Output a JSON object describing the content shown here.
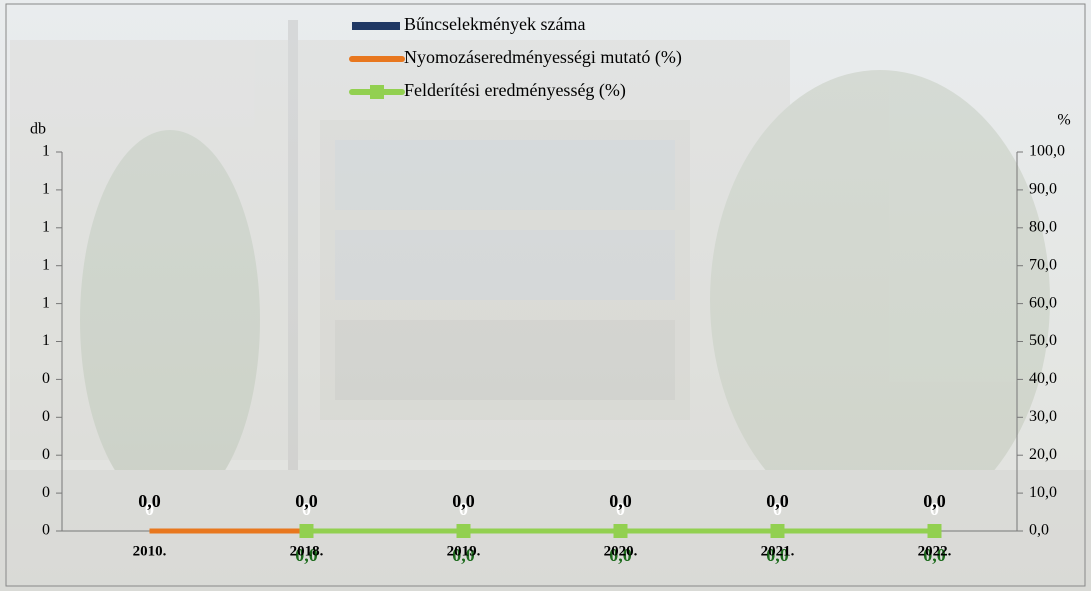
{
  "chart_data": {
    "type": "combo",
    "categories": [
      "2010.",
      "2018.",
      "2019.",
      "2020.",
      "2021.",
      "2022."
    ],
    "y_axis_label": "db",
    "y2_axis_label": "%",
    "ylim": [
      0,
      1
    ],
    "yticks": [
      {
        "value": 0,
        "label": "0"
      },
      {
        "value": 0.1,
        "label": "0"
      },
      {
        "value": 0.2,
        "label": "0"
      },
      {
        "value": 0.3,
        "label": "0"
      },
      {
        "value": 0.4,
        "label": "0"
      },
      {
        "value": 0.5,
        "label": "1"
      },
      {
        "value": 0.6,
        "label": "1"
      },
      {
        "value": 0.7,
        "label": "1"
      },
      {
        "value": 0.8,
        "label": "1"
      },
      {
        "value": 0.9,
        "label": "1"
      },
      {
        "value": 1,
        "label": "1"
      }
    ],
    "y2lim": [
      0,
      100
    ],
    "y2ticks": [
      {
        "value": 0,
        "label": "0,0"
      },
      {
        "value": 10,
        "label": "10,0"
      },
      {
        "value": 20,
        "label": "20,0"
      },
      {
        "value": 30,
        "label": "30,0"
      },
      {
        "value": 40,
        "label": "40,0"
      },
      {
        "value": 50,
        "label": "50,0"
      },
      {
        "value": 60,
        "label": "60,0"
      },
      {
        "value": 70,
        "label": "70,0"
      },
      {
        "value": 80,
        "label": "80,0"
      },
      {
        "value": 90,
        "label": "90,0"
      },
      {
        "value": 100,
        "label": "100,0"
      }
    ],
    "series": [
      {
        "name": "Bűncselekmények száma",
        "kind": "bar",
        "color": "#1f3864",
        "label_color": "#ffffff",
        "values": [
          0,
          0,
          0,
          0,
          0,
          0
        ]
      },
      {
        "name": "Nyomozáseredményességi mutató (%)",
        "kind": "line",
        "axis": "y2",
        "color": "#e8771e",
        "label_color": "#000000",
        "values": [
          0,
          0,
          0,
          0,
          0,
          0
        ],
        "value_labels": [
          "0,0",
          "0,0",
          "0,0",
          "0,0",
          "0,0",
          "0,0"
        ]
      },
      {
        "name": "Felderítési eredményesség (%)",
        "kind": "line",
        "axis": "y2",
        "marker": "square",
        "color": "#92d050",
        "label_color": "#1e6b1e",
        "values": [
          null,
          0,
          0,
          0,
          0,
          0
        ],
        "value_labels": [
          null,
          "0,0",
          "0,0",
          "0,0",
          "0,0",
          "0,0"
        ]
      }
    ]
  }
}
